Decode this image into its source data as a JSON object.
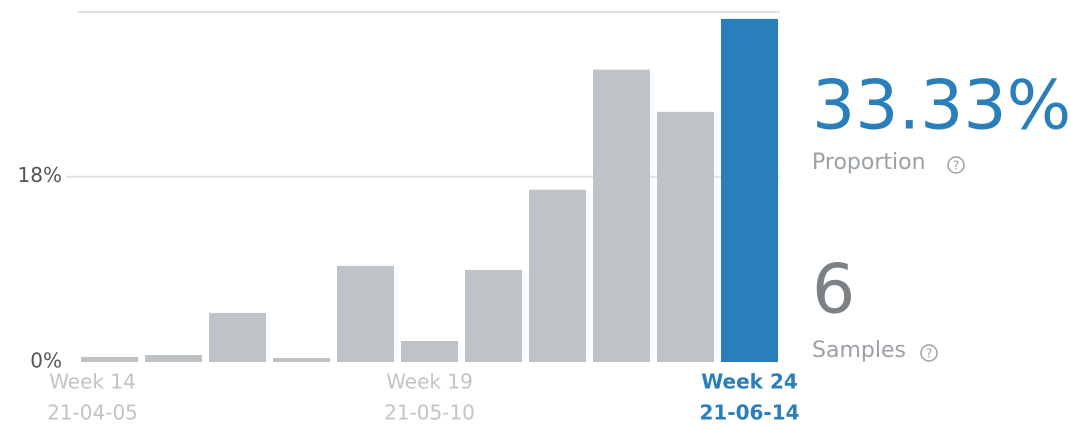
{
  "chart_data": {
    "type": "bar",
    "categories": [
      "Week 14",
      null,
      null,
      null,
      null,
      "Week 19",
      null,
      null,
      null,
      null,
      "Week 24"
    ],
    "dates": [
      "21-04-05",
      null,
      null,
      null,
      null,
      "21-05-10",
      null,
      null,
      null,
      null,
      "21-06-14"
    ],
    "values": [
      0.49,
      0.68,
      4.77,
      0.39,
      9.34,
      2.04,
      8.95,
      16.73,
      28.4,
      24.3,
      33.33
    ],
    "color": "#bdc3c7",
    "highlight_color": "#2a7fba",
    "highlight_index": 10,
    "ylim": [
      0,
      34
    ],
    "yticks": [
      {
        "value": 0,
        "label": "0%"
      },
      {
        "value": 18,
        "label": "18%"
      }
    ],
    "grid": true,
    "proportion": {
      "value": "33.33%",
      "label": "Proportion"
    },
    "samples": {
      "value": "6",
      "label": "Samples"
    }
  }
}
